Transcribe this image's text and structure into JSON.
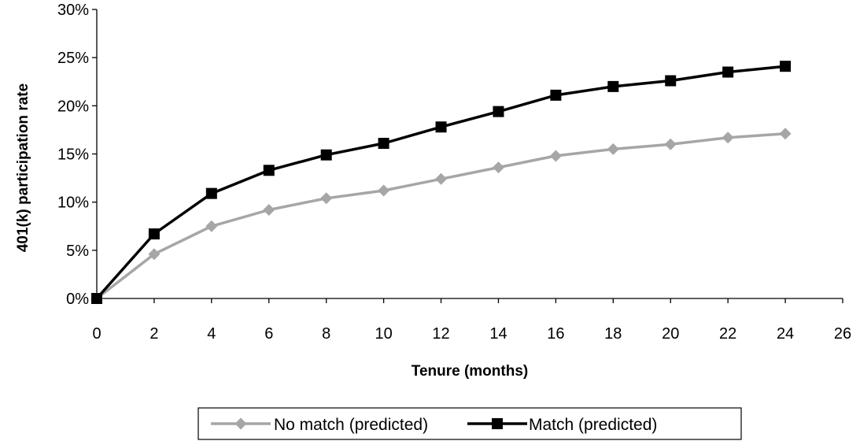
{
  "chart_data": {
    "type": "line",
    "title": "",
    "xlabel": "Tenure (months)",
    "ylabel": "401(k) participation rate",
    "xlim": [
      0,
      26
    ],
    "ylim": [
      0,
      30
    ],
    "xticks": [
      0,
      2,
      4,
      6,
      8,
      10,
      12,
      14,
      16,
      18,
      20,
      22,
      24,
      26
    ],
    "xtick_labels": [
      "0",
      "2",
      "4",
      "6",
      "8",
      "10",
      "12",
      "14",
      "16",
      "18",
      "20",
      "22",
      "24",
      "26"
    ],
    "yticks": [
      0,
      5,
      10,
      15,
      20,
      25,
      30
    ],
    "ytick_labels": [
      "0%",
      "5%",
      "10%",
      "15%",
      "20%",
      "25%",
      "30%"
    ],
    "grid": false,
    "legend_position": "bottom",
    "x": [
      0,
      2,
      4,
      6,
      8,
      10,
      12,
      14,
      16,
      18,
      20,
      22,
      24
    ],
    "series": [
      {
        "name": "No match (predicted)",
        "color": "#a6a6a6",
        "marker": "diamond",
        "values": [
          0.0,
          4.6,
          7.5,
          9.2,
          10.4,
          11.2,
          12.4,
          13.6,
          14.8,
          15.5,
          16.0,
          16.7,
          17.1
        ]
      },
      {
        "name": "Match (predicted)",
        "color": "#000000",
        "marker": "square",
        "values": [
          0.0,
          6.7,
          10.9,
          13.3,
          14.9,
          16.1,
          17.8,
          19.4,
          21.1,
          22.0,
          22.6,
          23.5,
          24.1
        ]
      }
    ]
  }
}
